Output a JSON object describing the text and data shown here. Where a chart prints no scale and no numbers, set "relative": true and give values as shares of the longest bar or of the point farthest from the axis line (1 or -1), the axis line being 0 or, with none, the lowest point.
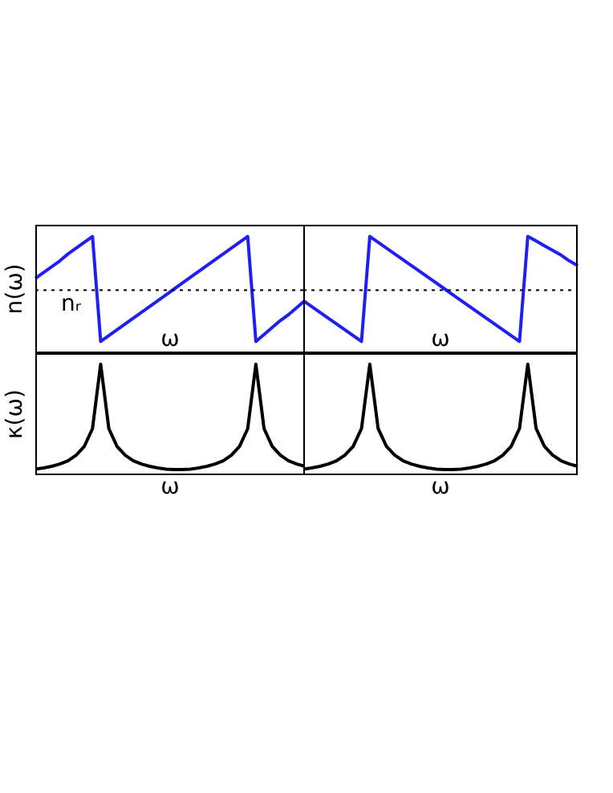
{
  "chart_data": [
    {
      "type": "line",
      "relative": true,
      "ylabel": "n(ω)",
      "xlabel": "ω",
      "categories": [
        null,
        null,
        null,
        null,
        null,
        null,
        null,
        null,
        null,
        null,
        null,
        null,
        null,
        null,
        null,
        null,
        null,
        null,
        null,
        null,
        null,
        null,
        null,
        null,
        null,
        null,
        null,
        null,
        null,
        null,
        null,
        null,
        null,
        null
      ],
      "series": [
        {
          "color": "#1f1ff5",
          "values": [
            0.64,
            0.69,
            0.74,
            0.79,
            0.85,
            0.9,
            0.95,
            1.0,
            0.1,
            0.15,
            0.2,
            0.25,
            0.3,
            0.35,
            0.4,
            0.45,
            0.5,
            0.55,
            0.6,
            0.65,
            0.7,
            0.75,
            0.8,
            0.85,
            0.9,
            0.95,
            1.0,
            0.1,
            0.16,
            0.22,
            0.28,
            0.33,
            0.39,
            0.45
          ]
        }
      ],
      "ref_lines": [
        {
          "axis": "y",
          "value": 0.54,
          "label": "nᵣ",
          "color": "#000000",
          "line_style": "dotted"
        }
      ]
    },
    {
      "type": "line",
      "relative": true,
      "xlabel": "ω",
      "categories": [
        null,
        null,
        null,
        null,
        null,
        null,
        null,
        null,
        null,
        null,
        null,
        null,
        null,
        null,
        null,
        null,
        null,
        null,
        null,
        null,
        null,
        null,
        null,
        null,
        null,
        null,
        null,
        null,
        null,
        null,
        null,
        null,
        null,
        null
      ],
      "series": [
        {
          "color": "#1f1ff5",
          "values": [
            0.45,
            0.4,
            0.35,
            0.3,
            0.25,
            0.2,
            0.15,
            0.1,
            1.0,
            0.95,
            0.9,
            0.85,
            0.8,
            0.75,
            0.7,
            0.65,
            0.6,
            0.55,
            0.5,
            0.45,
            0.4,
            0.35,
            0.3,
            0.25,
            0.2,
            0.15,
            0.1,
            1.0,
            0.96,
            0.92,
            0.88,
            0.84,
            0.79,
            0.75
          ]
        }
      ],
      "ref_lines": [
        {
          "axis": "y",
          "value": 0.54,
          "color": "#000000",
          "line_style": "dotted"
        }
      ]
    },
    {
      "type": "line",
      "relative": true,
      "ylabel": "κ(ω)",
      "xlabel": "ω",
      "categories": [
        null,
        null,
        null,
        null,
        null,
        null,
        null,
        null,
        null,
        null,
        null,
        null,
        null,
        null,
        null,
        null,
        null,
        null,
        null,
        null,
        null,
        null,
        null,
        null,
        null,
        null,
        null,
        null,
        null,
        null,
        null,
        null,
        null,
        null
      ],
      "series": [
        {
          "color": "#000000",
          "values": [
            0.055,
            0.065,
            0.08,
            0.1,
            0.13,
            0.18,
            0.26,
            0.42,
            1.0,
            0.42,
            0.26,
            0.18,
            0.13,
            0.1,
            0.08,
            0.065,
            0.055,
            0.05,
            0.05,
            0.055,
            0.065,
            0.08,
            0.1,
            0.13,
            0.18,
            0.26,
            0.42,
            1.0,
            0.42,
            0.26,
            0.18,
            0.13,
            0.1,
            0.08
          ]
        }
      ]
    },
    {
      "type": "line",
      "relative": true,
      "xlabel": "ω",
      "categories": [
        null,
        null,
        null,
        null,
        null,
        null,
        null,
        null,
        null,
        null,
        null,
        null,
        null,
        null,
        null,
        null,
        null,
        null,
        null,
        null,
        null,
        null,
        null,
        null,
        null,
        null,
        null,
        null,
        null,
        null,
        null,
        null,
        null,
        null
      ],
      "series": [
        {
          "color": "#000000",
          "values": [
            0.055,
            0.065,
            0.08,
            0.1,
            0.13,
            0.18,
            0.26,
            0.42,
            1.0,
            0.42,
            0.26,
            0.18,
            0.13,
            0.1,
            0.08,
            0.065,
            0.055,
            0.05,
            0.05,
            0.055,
            0.065,
            0.08,
            0.1,
            0.13,
            0.18,
            0.26,
            0.42,
            1.0,
            0.42,
            0.26,
            0.18,
            0.13,
            0.1,
            0.08
          ]
        }
      ]
    }
  ]
}
